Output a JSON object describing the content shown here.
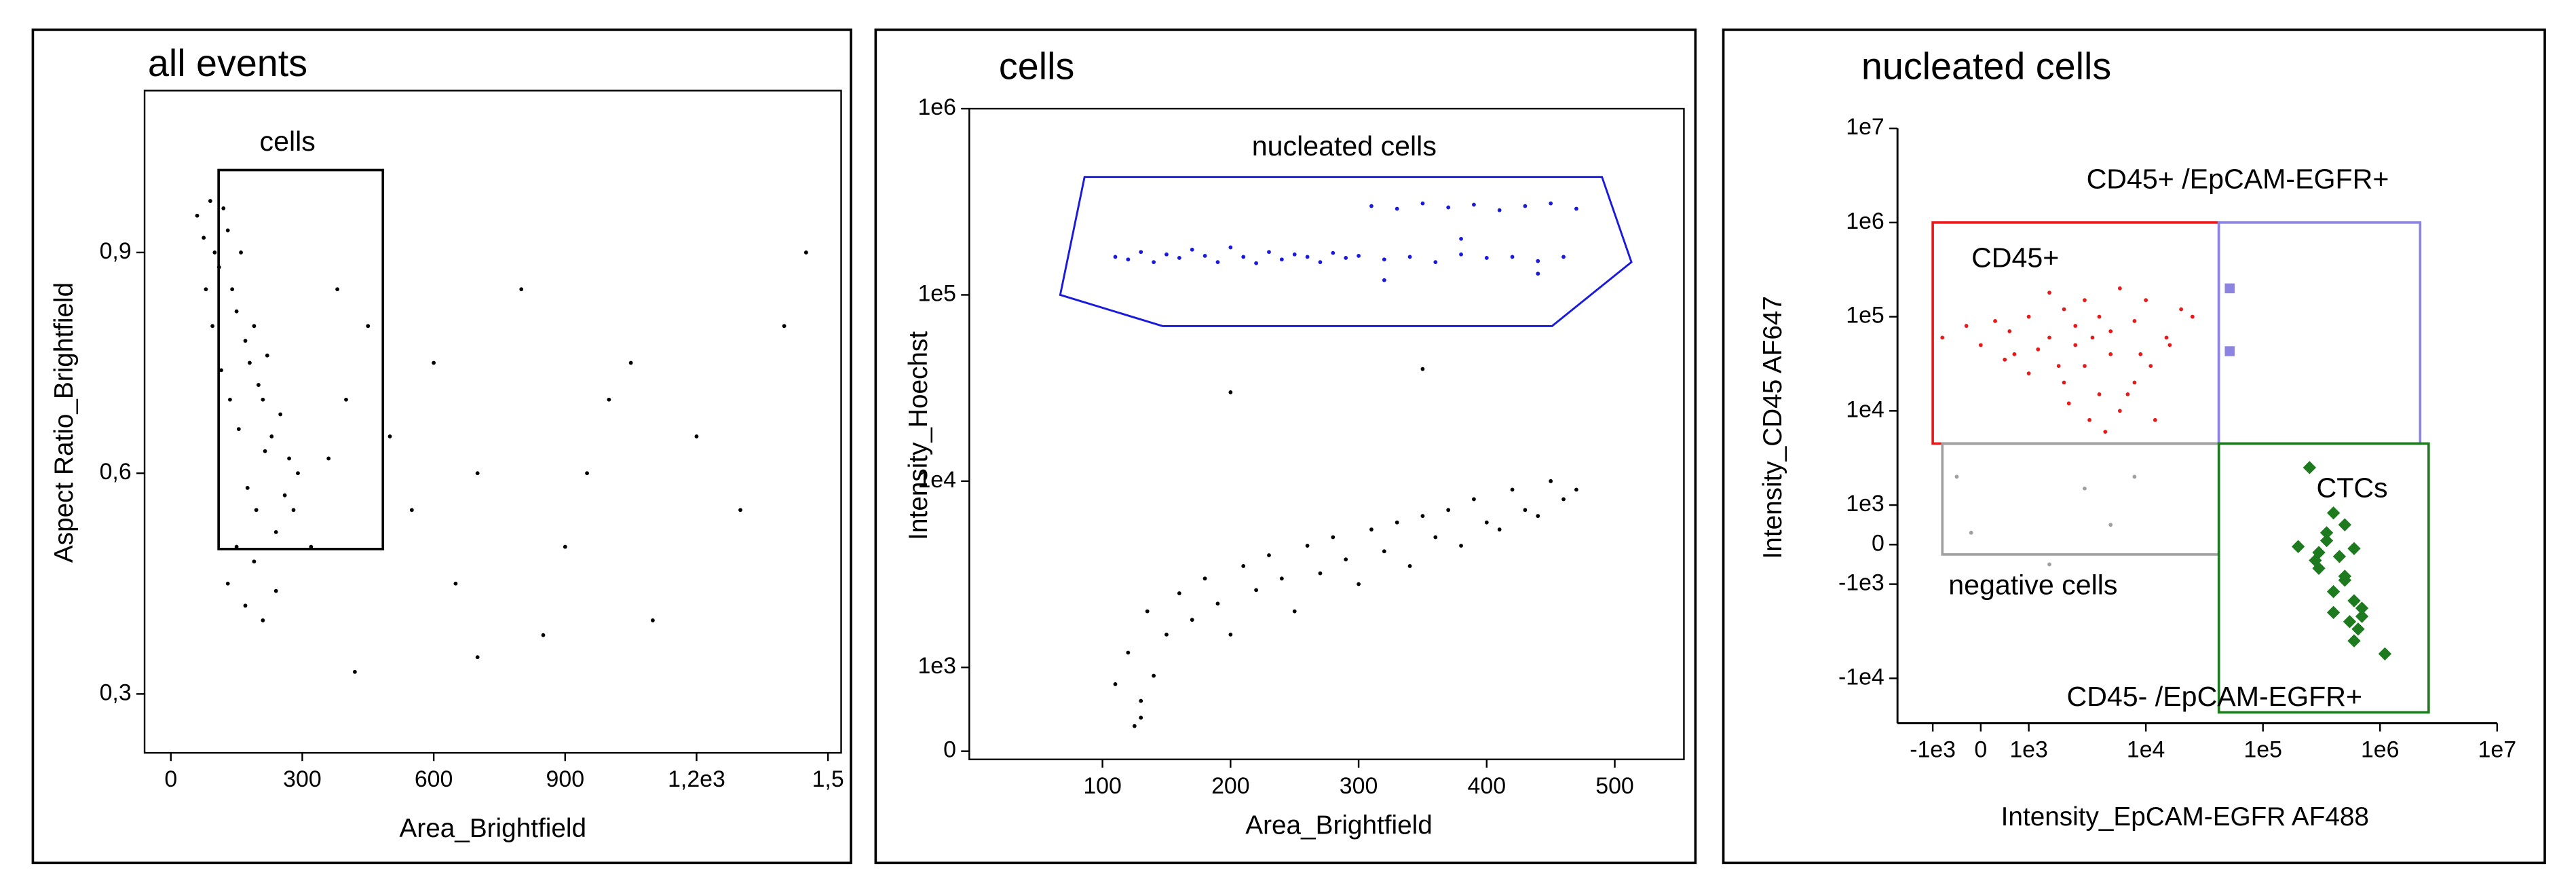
{
  "chart_data": [
    {
      "type": "scatter",
      "title": "all events",
      "x_label": "Area_Brightfield",
      "y_label": "Aspect Ratio_Brightfield",
      "xlim": [
        -60,
        1530
      ],
      "ylim": [
        0.22,
        1.12
      ],
      "xscale": {
        "type": "linear"
      },
      "yscale": {
        "type": "linear"
      },
      "xticks": [
        0,
        300,
        600,
        900,
        {
          "value": 1200,
          "label": "1,2e3"
        },
        {
          "value": 1500,
          "label": "1,5"
        }
      ],
      "yticks": [
        {
          "value": 0.3,
          "label": "0,3"
        },
        {
          "value": 0.6,
          "label": "0,6"
        },
        {
          "value": 0.9,
          "label": "0,9"
        }
      ],
      "series": [
        {
          "color": "#000000",
          "x": [
            60,
            75,
            90,
            100,
            110,
            120,
            130,
            140,
            150,
            160,
            170,
            180,
            190,
            200,
            210,
            220,
            230,
            250,
            270,
            290,
            80,
            95,
            115,
            135,
            155,
            175,
            195,
            215,
            240,
            260,
            130,
            150,
            170,
            190,
            210,
            240,
            280,
            320,
            360,
            400,
            450,
            500,
            550,
            600,
            650,
            700,
            800,
            900,
            1000,
            1100,
            1200,
            1300,
            1400,
            1450,
            700,
            850,
            950,
            1050,
            380,
            420
          ],
          "y": [
            0.95,
            0.92,
            0.97,
            0.9,
            0.88,
            0.96,
            0.93,
            0.85,
            0.82,
            0.9,
            0.78,
            0.75,
            0.8,
            0.72,
            0.7,
            0.76,
            0.65,
            0.68,
            0.62,
            0.6,
            0.85,
            0.8,
            0.74,
            0.7,
            0.66,
            0.58,
            0.55,
            0.63,
            0.52,
            0.57,
            0.45,
            0.5,
            0.42,
            0.48,
            0.4,
            0.44,
            0.55,
            0.5,
            0.62,
            0.7,
            0.8,
            0.65,
            0.55,
            0.75,
            0.45,
            0.6,
            0.85,
            0.5,
            0.7,
            0.4,
            0.65,
            0.55,
            0.8,
            0.9,
            0.35,
            0.38,
            0.6,
            0.75,
            0.85,
            0.33
          ]
        }
      ],
      "gates": [
        {
          "label": "cells",
          "color": "#000000",
          "rect": {
            "x": [
              109,
              484
            ],
            "y": [
              0.497,
              1.012
            ]
          }
        }
      ]
    },
    {
      "type": "scatter",
      "title": "cells",
      "x_label": "Area_Brightfield",
      "y_label": "Intensity_Hoechst",
      "xlim": [
        -4,
        554
      ],
      "ylim": [
        0,
        1000000
      ],
      "xscale": {
        "type": "linear"
      },
      "yscale": {
        "type": "symlog",
        "linthresh": 1000,
        "linscale": 0.45
      },
      "xticks": [
        100,
        200,
        300,
        400,
        500
      ],
      "yticks": [
        0,
        {
          "value": 1000,
          "label": "1e3"
        },
        {
          "value": 10000,
          "label": "1e4"
        },
        {
          "value": 100000,
          "label": "1e5"
        },
        {
          "value": 1000000,
          "label": "1e6"
        }
      ],
      "series": [
        {
          "color": "#1a1adc",
          "x": [
            110,
            120,
            130,
            140,
            150,
            160,
            170,
            180,
            190,
            200,
            210,
            220,
            230,
            240,
            250,
            260,
            270,
            280,
            290,
            300,
            310,
            320,
            330,
            340,
            350,
            360,
            370,
            380,
            390,
            400,
            410,
            420,
            430,
            440,
            450,
            460,
            470,
            320,
            380,
            440
          ],
          "y": [
            160000,
            155000,
            170000,
            150000,
            165000,
            158000,
            175000,
            162000,
            150000,
            180000,
            160000,
            148000,
            170000,
            155000,
            165000,
            160000,
            150000,
            168000,
            158000,
            162000,
            300000,
            155000,
            290000,
            160000,
            310000,
            150000,
            295000,
            165000,
            305000,
            158000,
            285000,
            160000,
            300000,
            152000,
            310000,
            160000,
            290000,
            120000,
            200000,
            130000
          ]
        },
        {
          "color": "#000000",
          "x": [
            110,
            120,
            130,
            135,
            140,
            150,
            160,
            170,
            180,
            190,
            200,
            210,
            220,
            230,
            240,
            250,
            260,
            270,
            280,
            290,
            300,
            310,
            320,
            330,
            340,
            350,
            360,
            370,
            380,
            390,
            400,
            410,
            420,
            430,
            440,
            450,
            460,
            470,
            200,
            350,
            130,
            125
          ],
          "y": [
            800,
            1200,
            600,
            2000,
            900,
            1500,
            2500,
            1800,
            3000,
            2200,
            1500,
            3500,
            2600,
            4000,
            3000,
            2000,
            4500,
            3200,
            5000,
            3800,
            2800,
            5500,
            4200,
            6000,
            3500,
            6500,
            5000,
            7000,
            4500,
            8000,
            6000,
            5500,
            9000,
            7000,
            6500,
            10000,
            8000,
            9000,
            30000,
            40000,
            400,
            300
          ]
        }
      ],
      "gates": [
        {
          "label": "nucleated cells",
          "color": "#1a1adc",
          "polygon": {
            "x": [
              86,
              490,
              513,
              451,
              147,
              67
            ],
            "y": [
              430000,
              430000,
              150000,
              68000,
              68000,
              100000
            ]
          }
        }
      ]
    },
    {
      "type": "scatter",
      "title": "nucleated cells",
      "x_label": "Intensity_EpCAM-EGFR AF488",
      "y_label": "Intensity_CD45 AF647",
      "xlim": [
        -2000,
        10000000
      ],
      "ylim": [
        -30000,
        10000000
      ],
      "xscale": {
        "type": "symlog",
        "linthresh": 1000,
        "linscale": 0.41
      },
      "yscale": {
        "type": "symlog",
        "linthresh": 1000,
        "linscale": 0.42
      },
      "xticks": [
        {
          "value": -1000,
          "label": "-1e3"
        },
        0,
        {
          "value": 1000,
          "label": "1e3"
        },
        {
          "value": 10000,
          "label": "1e4"
        },
        {
          "value": 100000,
          "label": "1e5"
        },
        {
          "value": 1000000,
          "label": "1e6"
        },
        {
          "value": 10000000,
          "label": "1e7"
        }
      ],
      "yticks": [
        {
          "value": -10000,
          "label": "-1e4"
        },
        {
          "value": -1000,
          "label": "-1e3"
        },
        0,
        {
          "value": 1000,
          "label": "1e3"
        },
        {
          "value": 10000,
          "label": "1e4"
        },
        {
          "value": 100000,
          "label": "1e5"
        },
        {
          "value": 1000000,
          "label": "1e6"
        },
        {
          "value": 10000000,
          "label": "1e7"
        }
      ],
      "series": [
        {
          "color": "#e81919",
          "x": [
            -800,
            -300,
            0,
            300,
            600,
            1000,
            1500,
            2000,
            2500,
            3000,
            4000,
            5000,
            6000,
            8000,
            10000,
            15000,
            20000,
            3000,
            5000,
            2000,
            1000,
            700,
            4000,
            6000,
            8000,
            12000,
            2500,
            3500,
            1800,
            9000,
            500,
            1200,
            2200,
            3300,
            4500,
            7000,
            11000,
            16000,
            25000,
            1500
          ],
          "y": [
            60000,
            80000,
            50000,
            90000,
            70000,
            100000,
            60000,
            120000,
            80000,
            150000,
            100000,
            70000,
            200000,
            90000,
            150000,
            60000,
            120000,
            30000,
            40000,
            20000,
            25000,
            40000,
            15000,
            10000,
            20000,
            8000,
            50000,
            60000,
            30000,
            40000,
            35000,
            45000,
            12000,
            8000,
            6000,
            15000,
            30000,
            50000,
            100000,
            180000
          ]
        },
        {
          "color": "#a0a0a0",
          "x": [
            -500,
            1500,
            3000,
            5000,
            8000,
            -200
          ],
          "y": [
            2000,
            -500,
            1500,
            500,
            2000,
            300
          ]
        },
        {
          "color": "#8c84e0",
          "x": [
            52000,
            52000
          ],
          "y": [
            200000,
            43000
          ]
        },
        {
          "color": "#1e7a1e",
          "x": [
            250000,
            400000,
            300000,
            500000,
            350000,
            600000,
            200000,
            450000,
            300000,
            500000,
            400000,
            600000,
            700000,
            550000,
            650000,
            700000,
            400000,
            600000,
            1100000,
            350000,
            500000,
            280000
          ],
          "y": [
            2500,
            800,
            -200,
            500,
            300,
            -100,
            -50,
            -300,
            -600,
            -800,
            -1200,
            -1500,
            -1800,
            -2500,
            -3000,
            -2200,
            -2000,
            -4000,
            -5500,
            100,
            -900,
            -400
          ]
        }
      ],
      "gates": [
        {
          "label": "CD45+",
          "color": "#e81919",
          "rect": {
            "x": [
              -1000,
              42000
            ],
            "y": [
              4500,
              1000000
            ]
          }
        },
        {
          "label": "CD45+ /EpCAM-EGFR+",
          "color": "#8c84e0",
          "rect": {
            "x": [
              42000,
              2200000
            ],
            "y": [
              4500,
              1000000
            ]
          }
        },
        {
          "label": "negative cells",
          "color": "#a0a0a0",
          "rect": {
            "x": [
              -800,
              42000
            ],
            "y": [
              -250,
              4500
            ]
          }
        },
        {
          "label": "CTCs",
          "color": "#1e7a1e",
          "rect": {
            "x": [
              42000,
              2600000
            ],
            "y": [
              -23000,
              4500
            ]
          }
        },
        {
          "label": "CD45- /EpCAM-EGFR+",
          "color": "#1e7a1e"
        }
      ]
    }
  ]
}
